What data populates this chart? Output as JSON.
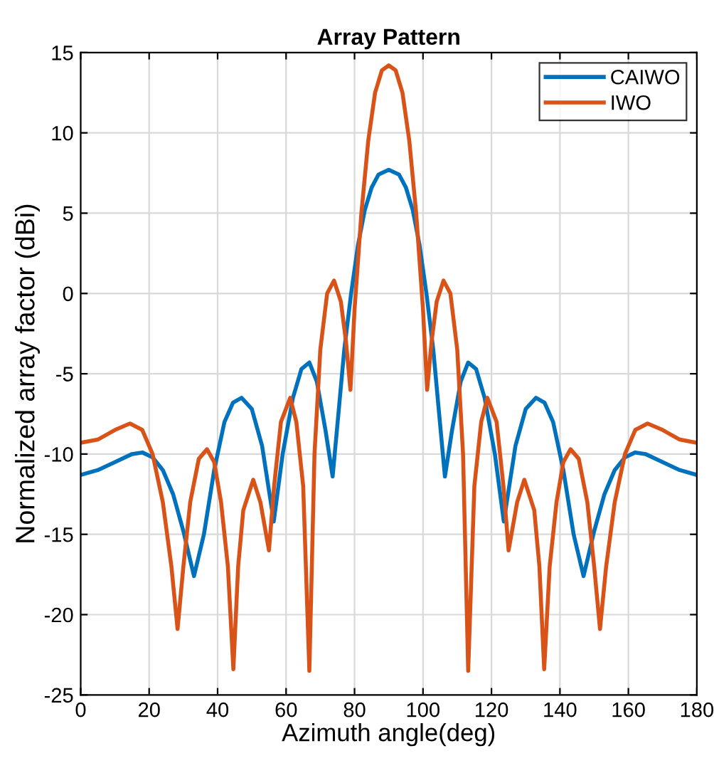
{
  "chart_data": {
    "type": "line",
    "title": "Array Pattern",
    "xlabel": "Azimuth angle(deg)",
    "ylabel": "Normalized array factor (dBi)",
    "xlim": [
      0,
      180
    ],
    "xticks": [
      0,
      20,
      40,
      60,
      80,
      100,
      120,
      140,
      160,
      180
    ],
    "ylim": [
      -25,
      15
    ],
    "yticks": [
      -25,
      -20,
      -15,
      -10,
      -5,
      0,
      5,
      10,
      15
    ],
    "grid": true,
    "legend": "top right",
    "line_style": "solid",
    "marker": "none",
    "series": [
      {
        "name": "CAIWO",
        "color": "#0072bd",
        "x": [
          0,
          5,
          10,
          15,
          18,
          21,
          24,
          27,
          30,
          33.1,
          36,
          39,
          42,
          44.5,
          47,
          50,
          53,
          56.4,
          59,
          62,
          64.5,
          66.8,
          69,
          71.5,
          73.6,
          75.5,
          77,
          79,
          81,
          83,
          85,
          87,
          90,
          93,
          95,
          97,
          99,
          101,
          103,
          104.5,
          106.4,
          108.5,
          111,
          113.2,
          115.5,
          118,
          121,
          123.6,
          127,
          130,
          133,
          135.5,
          138,
          141,
          144,
          146.9,
          150,
          153,
          156,
          159,
          162,
          165,
          170,
          175,
          180
        ],
        "values": [
          -11.3,
          -11,
          -10.5,
          -10,
          -9.9,
          -10.2,
          -11,
          -12.5,
          -14.8,
          -17.6,
          -15,
          -11,
          -8,
          -6.8,
          -6.5,
          -7.2,
          -9.5,
          -14.2,
          -10,
          -6.5,
          -4.7,
          -4.3,
          -5.5,
          -8.5,
          -11.4,
          -7,
          -3.5,
          0,
          3,
          5.2,
          6.6,
          7.4,
          7.7,
          7.4,
          6.6,
          5.2,
          3,
          0,
          -3.5,
          -7,
          -11.4,
          -8.5,
          -5.5,
          -4.3,
          -4.7,
          -6.5,
          -10,
          -14.2,
          -9.5,
          -7.2,
          -6.5,
          -6.8,
          -8,
          -11,
          -15,
          -17.6,
          -14.8,
          -12.5,
          -11,
          -10.2,
          -9.9,
          -10,
          -10.5,
          -11,
          -11.3
        ]
      },
      {
        "name": "IWO",
        "color": "#d95319",
        "x": [
          0,
          5,
          10,
          14.4,
          18,
          21,
          24,
          26.5,
          28.3,
          30,
          32,
          34.5,
          36.9,
          39,
          41,
          43,
          44.6,
          46,
          47.5,
          50.4,
          52.5,
          55,
          56.5,
          58.5,
          61.2,
          63,
          65,
          66.8,
          68.3,
          70,
          72,
          74,
          76,
          77.5,
          78.8,
          80,
          82,
          84,
          86,
          88,
          90,
          92,
          94,
          96,
          98,
          100,
          101.2,
          102.5,
          104,
          106,
          108,
          110,
          111.7,
          113.2,
          115,
          117,
          118.8,
          121.5,
          123.5,
          125,
          127.5,
          129.6,
          132.5,
          134,
          135.4,
          137,
          139,
          141,
          143.1,
          145.5,
          148,
          150,
          151.7,
          153.5,
          156,
          159,
          162,
          165.6,
          170,
          175,
          180
        ],
        "values": [
          -9.3,
          -9.1,
          -8.5,
          -8.1,
          -8.5,
          -10,
          -13,
          -17,
          -20.9,
          -17,
          -13,
          -10.3,
          -9.7,
          -10.5,
          -13,
          -17,
          -23.4,
          -17,
          -13.5,
          -11.6,
          -13,
          -16,
          -12,
          -8,
          -6.5,
          -8,
          -12,
          -23.5,
          -10,
          -3.5,
          0,
          0.8,
          -0.5,
          -3,
          -6,
          -1,
          5,
          9.5,
          12.5,
          13.9,
          14.2,
          13.9,
          12.5,
          9.5,
          5,
          -1,
          -6,
          -3,
          -0.5,
          0.8,
          0,
          -3.5,
          -10,
          -23.5,
          -12,
          -8,
          -6.5,
          -8,
          -12,
          -16,
          -13,
          -11.6,
          -13.5,
          -17,
          -23.4,
          -17,
          -13,
          -10.5,
          -9.7,
          -10.3,
          -13,
          -17,
          -20.9,
          -17,
          -13,
          -10,
          -8.5,
          -8.1,
          -8.5,
          -9.1,
          -9.3
        ]
      }
    ]
  }
}
